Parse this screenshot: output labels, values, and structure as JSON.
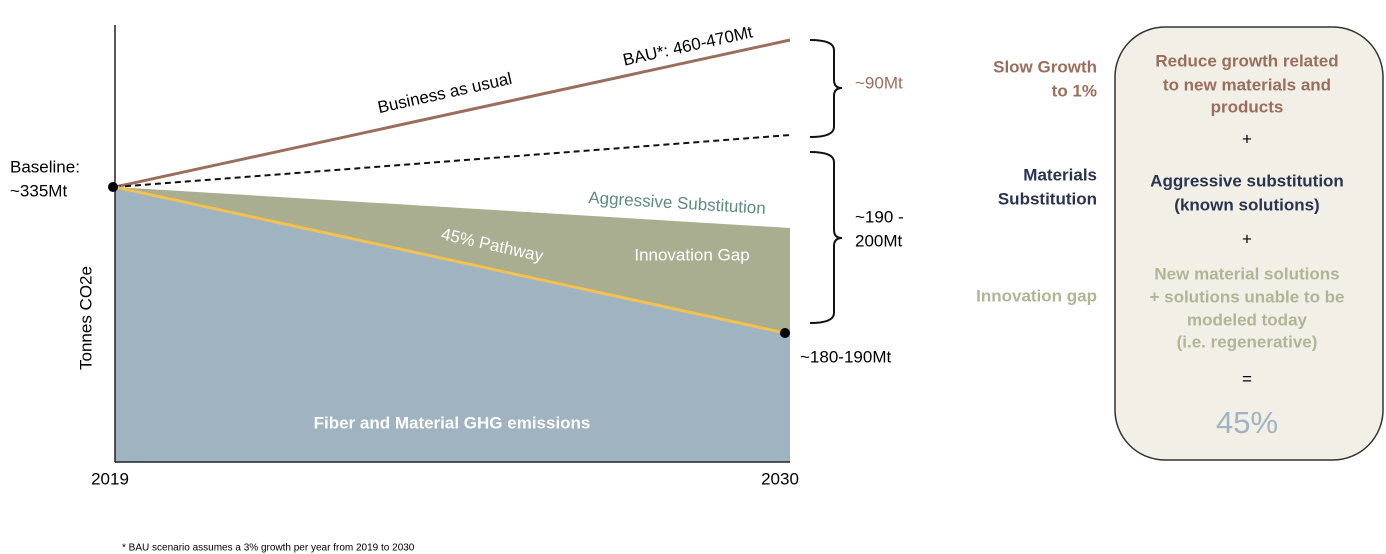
{
  "chart": {
    "y_axis_label": "Tonnes CO2e",
    "x_start_label": "2019",
    "x_end_label": "2030",
    "baseline": [
      "Baseline:",
      "~335Mt"
    ],
    "bau_line_label": "Business as usual",
    "bau_end_label": "BAU*: 460-470Mt",
    "aggressive_label": "Aggressive Substitution",
    "pathway_label": "45% Pathway",
    "gap_label": "Innovation Gap",
    "area_label": "Fiber and Material GHG emissions",
    "end_label": "~180-190Mt",
    "brace_top_label": "~90Mt",
    "brace_bottom_label": [
      "~190 -",
      "200Mt"
    ]
  },
  "panel": {
    "rows": [
      {
        "label": [
          "Slow Growth",
          "to 1%"
        ],
        "text": [
          "Reduce growth related",
          "to new materials and",
          "products"
        ]
      },
      {
        "label": [
          "Materials",
          "Substitution"
        ],
        "text": [
          "Aggressive substitution",
          "(known solutions)"
        ]
      },
      {
        "label": [
          "Innovation gap"
        ],
        "text": [
          "New material solutions",
          "+ solutions unable to be",
          "modeled today",
          "(i.e. regenerative)"
        ]
      }
    ],
    "plus": "+",
    "equals": "=",
    "result": "45%"
  },
  "footnote": "* BAU scenario assumes a 3% growth per year from 2019 to 2030"
}
